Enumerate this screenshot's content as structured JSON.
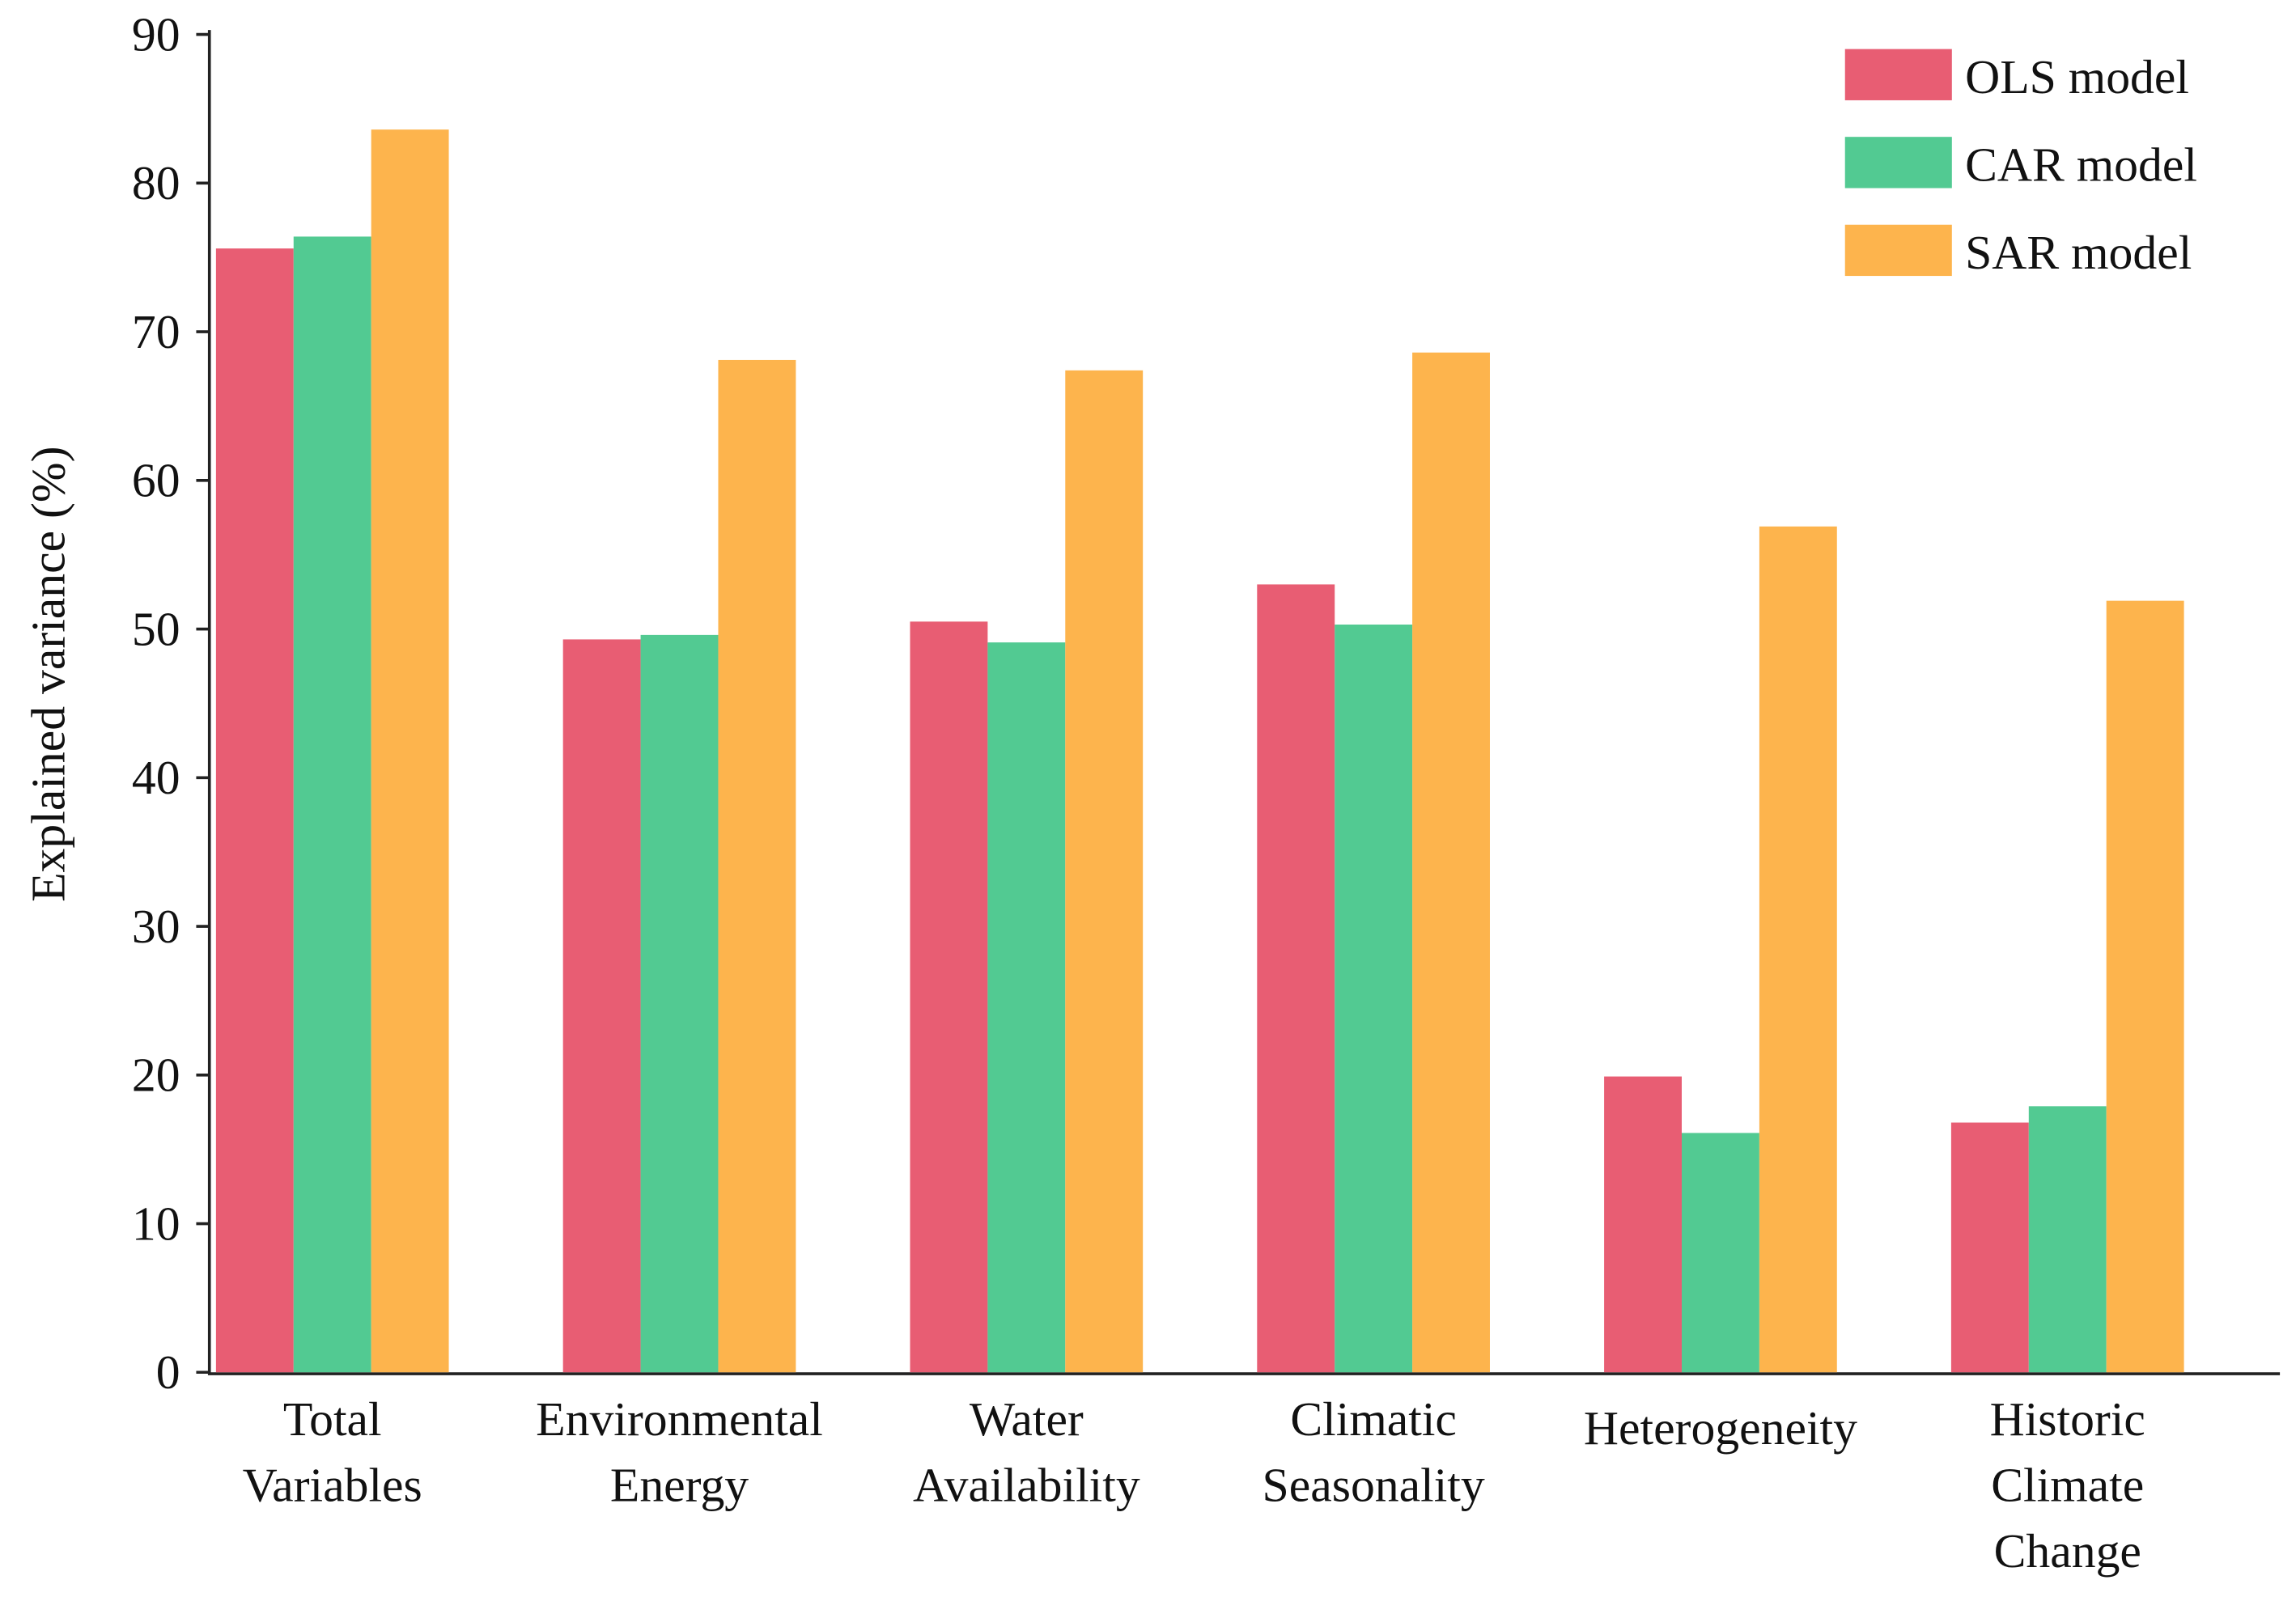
{
  "chart_data": {
    "type": "bar",
    "y_label": "Explained variance (%)",
    "categories": [
      "Total\nVariables",
      "Environmental\nEnergy",
      "Water\nAvailability",
      "Climatic\nSeasonality",
      "Heterogeneity",
      "Historic\nClimate\nChange"
    ],
    "series": [
      {
        "name": "OLS model",
        "color": "#e85d73",
        "values": [
          75.6,
          49.3,
          50.5,
          53.0,
          19.9,
          16.8
        ]
      },
      {
        "name": "CAR model",
        "color": "#52ca92",
        "values": [
          76.4,
          49.6,
          49.1,
          50.3,
          16.1,
          17.9
        ]
      },
      {
        "name": "SAR model",
        "color": "#fdb44d",
        "values": [
          83.6,
          68.1,
          67.4,
          68.6,
          56.9,
          51.9
        ]
      }
    ],
    "ylim": [
      0,
      90
    ],
    "yticks": [
      0,
      10,
      20,
      30,
      40,
      50,
      60,
      70,
      80,
      90
    ],
    "legend": "upper right"
  }
}
